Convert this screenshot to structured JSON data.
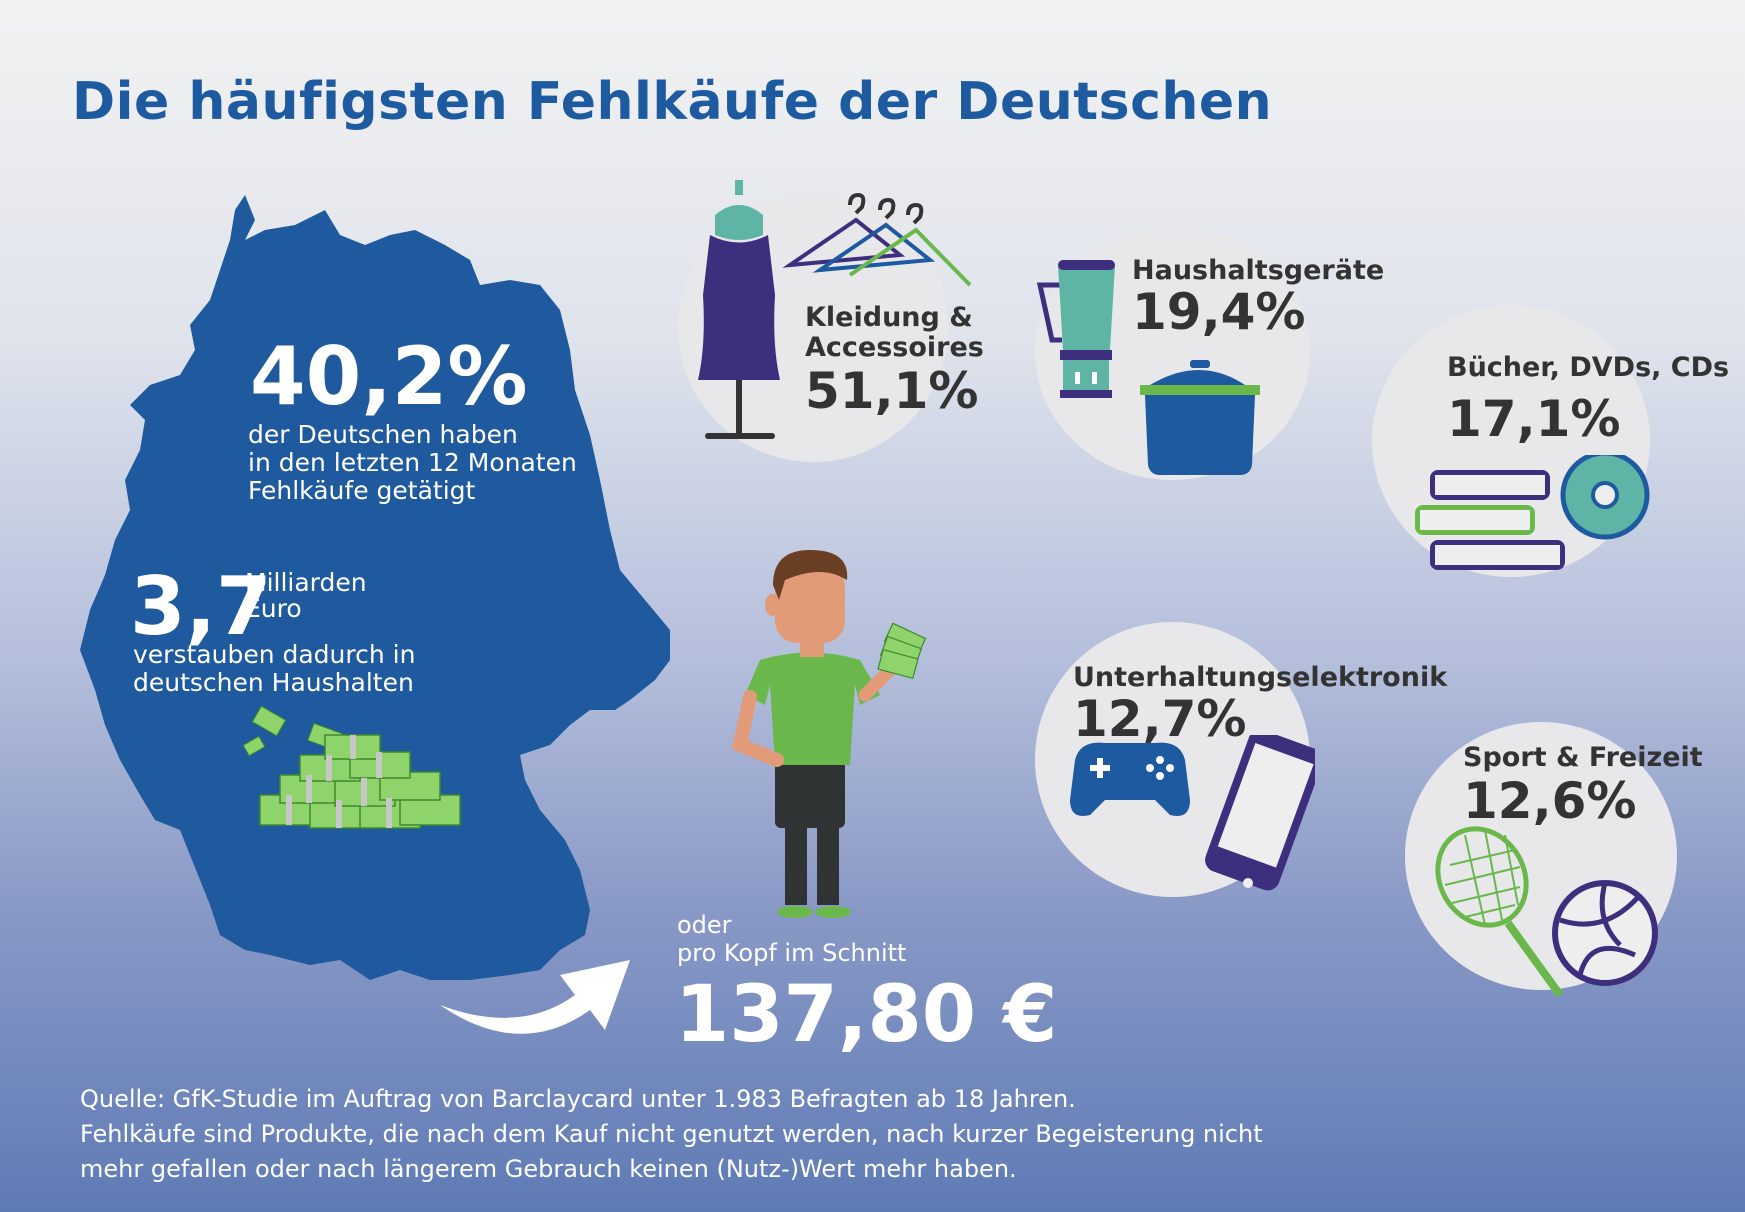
{
  "title": "Die häufigsten Fehlkäufe der Deutschen",
  "map": {
    "share_value": "40,2%",
    "share_text": [
      "der Deutschen haben",
      "in den letzten 12 Monaten",
      "Fehlkäufe getätigt"
    ],
    "amount_value": "3,7",
    "amount_unit": [
      "Milliarden",
      "Euro"
    ],
    "amount_text": [
      "verstauben dadurch in",
      "deutschen Haushalten"
    ]
  },
  "per_capita": {
    "line1": "oder",
    "line2": "pro Kopf im Schnitt",
    "value": "137,80 €"
  },
  "categories": [
    {
      "label": [
        "Kleidung &",
        "Accessoires"
      ],
      "value": "51,1%",
      "icon": "dress-icon"
    },
    {
      "label": [
        "Haushaltsgeräte"
      ],
      "value": "19,4%",
      "icon": "blender-icon"
    },
    {
      "label": [
        "Bücher, DVDs, CDs"
      ],
      "value": "17,1%",
      "icon": "books-icon"
    },
    {
      "label": [
        "Unterhaltungselektronik"
      ],
      "value": "12,7%",
      "icon": "gamepad-icon"
    },
    {
      "label": [
        "Sport & Freizeit"
      ],
      "value": "12,6%",
      "icon": "tennis-racket-icon"
    }
  ],
  "source": [
    "Quelle: GfK-Studie im Auftrag von Barclaycard unter 1.983 Befragten ab 18 Jahren.",
    "Fehlkäufe sind Produkte, die nach dem Kauf nicht genutzt werden, nach kurzer Begeisterung nicht",
    "mehr gefallen oder nach längerem Gebrauch keinen (Nutz-)Wert mehr haben."
  ],
  "colors": {
    "title_blue": "#1e5aa0",
    "map_blue": "#1f5a9f",
    "purple": "#3d2f7e",
    "teal": "#5fb5a5",
    "green": "#6ab84c",
    "circle_gray": "#e8e8ea"
  }
}
